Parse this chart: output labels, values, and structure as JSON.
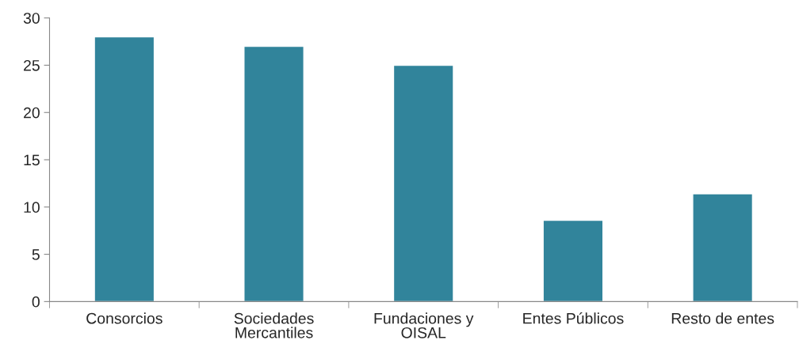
{
  "chart_data": {
    "type": "bar",
    "categories": [
      "Consorcios",
      "Sociedades\nMercantiles",
      "Fundaciones y\nOISAL",
      "Entes Públicos",
      "Resto de entes"
    ],
    "values": [
      28,
      27,
      25,
      8.6,
      11.4
    ],
    "color": "#31849b",
    "ylim": [
      0,
      30
    ],
    "yticks": [
      0,
      5,
      10,
      15,
      20,
      25,
      30
    ],
    "grid": false,
    "legend": false
  }
}
